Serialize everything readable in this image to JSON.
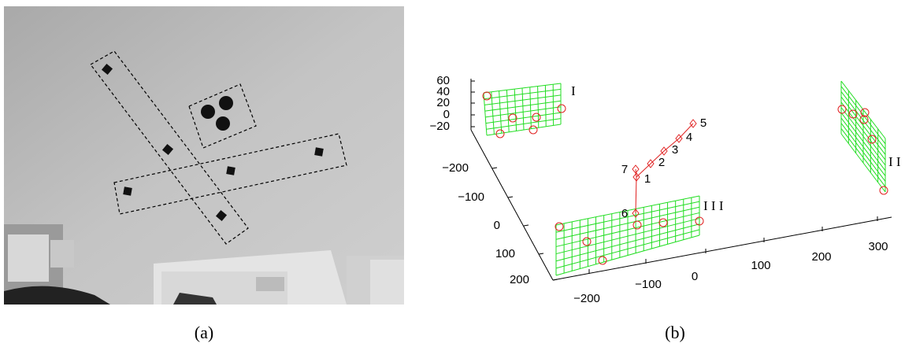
{
  "panel_a": {
    "caption": "(a)"
  },
  "panel_b": {
    "caption": "(b)",
    "vertical_ticks": [
      "60",
      "40",
      "20",
      "0",
      "−20"
    ],
    "depth_ticks": [
      "−200",
      "−100",
      "0",
      "100",
      "200"
    ],
    "horizontal_ticks": [
      "−200",
      "−100",
      "0",
      "100",
      "200",
      "300"
    ],
    "point_labels": [
      "1",
      "2",
      "3",
      "4",
      "5",
      "6",
      "7"
    ],
    "plane_labels": [
      "I",
      "I I",
      "I I I"
    ]
  }
}
